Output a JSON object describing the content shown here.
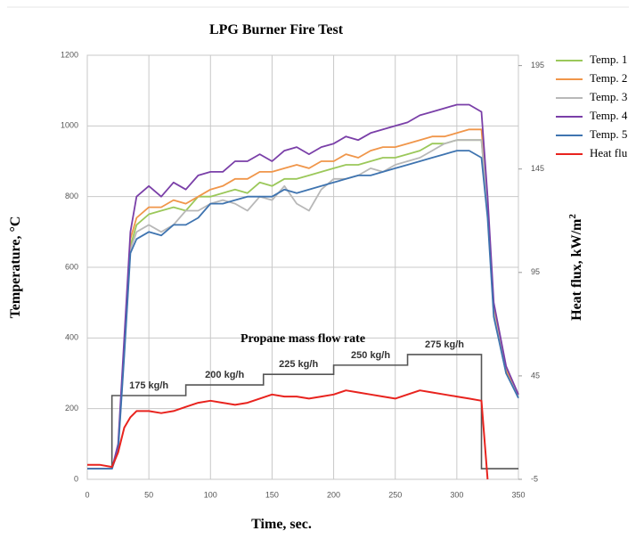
{
  "chart_data": {
    "type": "line",
    "title": "LPG Burner Fire Test",
    "xlabel": "Time, sec.",
    "ylabel": "Temperature, °C",
    "y2label": "Heat flux, kW/m",
    "y2label_sup": "2",
    "xlim": [
      0,
      350
    ],
    "xticks": [
      0,
      50,
      100,
      150,
      200,
      250,
      300,
      350
    ],
    "ylim": [
      0,
      1200
    ],
    "yticks": [
      0,
      200,
      400,
      600,
      800,
      1000,
      1200
    ],
    "y2lim": [
      -5,
      200
    ],
    "y2ticks": [
      -5,
      45,
      95,
      145,
      195
    ],
    "grid": true,
    "legend": "right",
    "x": [
      0,
      10,
      20,
      25,
      30,
      35,
      40,
      50,
      60,
      70,
      80,
      90,
      100,
      110,
      120,
      130,
      140,
      150,
      160,
      170,
      180,
      190,
      200,
      210,
      220,
      230,
      240,
      250,
      260,
      270,
      280,
      290,
      300,
      310,
      320,
      325,
      330,
      340,
      350
    ],
    "series": [
      {
        "name": "Temp. 1",
        "color": "#9bc85a",
        "values": [
          30,
          30,
          30,
          90,
          370,
          660,
          720,
          750,
          760,
          770,
          760,
          800,
          800,
          810,
          820,
          810,
          840,
          830,
          850,
          850,
          860,
          870,
          880,
          890,
          890,
          900,
          910,
          910,
          920,
          930,
          950,
          950,
          960,
          960,
          960,
          760,
          470,
          300,
          235
        ]
      },
      {
        "name": "Temp. 2",
        "color": "#f0964a",
        "values": [
          30,
          30,
          30,
          90,
          380,
          680,
          740,
          770,
          770,
          790,
          780,
          800,
          820,
          830,
          850,
          850,
          870,
          870,
          880,
          890,
          880,
          900,
          900,
          920,
          910,
          930,
          940,
          940,
          950,
          960,
          970,
          970,
          980,
          990,
          990,
          780,
          480,
          310,
          240
        ]
      },
      {
        "name": "Temp. 3",
        "color": "#b8b8b8",
        "values": [
          30,
          30,
          30,
          85,
          360,
          650,
          700,
          720,
          700,
          720,
          760,
          760,
          780,
          790,
          780,
          760,
          800,
          790,
          830,
          780,
          760,
          820,
          850,
          850,
          860,
          880,
          870,
          890,
          900,
          910,
          930,
          950,
          960,
          960,
          960,
          760,
          470,
          300,
          235
        ]
      },
      {
        "name": "Temp. 4",
        "color": "#7a3fa8",
        "values": [
          30,
          30,
          30,
          100,
          400,
          700,
          800,
          830,
          800,
          840,
          820,
          860,
          870,
          870,
          900,
          900,
          920,
          900,
          930,
          940,
          920,
          940,
          950,
          970,
          960,
          980,
          990,
          1000,
          1010,
          1030,
          1040,
          1050,
          1060,
          1060,
          1040,
          800,
          500,
          320,
          240
        ]
      },
      {
        "name": "Temp. 5",
        "color": "#3f74b0",
        "values": [
          30,
          30,
          30,
          80,
          350,
          640,
          680,
          700,
          690,
          720,
          720,
          740,
          780,
          780,
          790,
          800,
          800,
          800,
          820,
          810,
          820,
          830,
          840,
          850,
          860,
          860,
          870,
          880,
          890,
          900,
          910,
          920,
          930,
          930,
          910,
          740,
          460,
          300,
          230
        ]
      },
      {
        "name": "Heat flu",
        "color": "#e8231e",
        "axis": "y2",
        "values": [
          2,
          2,
          1,
          8,
          20,
          25,
          28,
          28,
          27,
          28,
          30,
          32,
          33,
          32,
          31,
          32,
          34,
          36,
          35,
          35,
          34,
          35,
          36,
          38,
          37,
          36,
          35,
          34,
          36,
          38,
          37,
          36,
          35,
          34,
          33,
          -5,
          null,
          null,
          null
        ]
      }
    ],
    "flow_rate": {
      "title": "Propane mass flow rate",
      "color": "#555555",
      "x": [
        0,
        20,
        80,
        143,
        200,
        260,
        320,
        350
      ],
      "values": [
        30,
        237,
        267,
        297,
        323,
        353,
        30,
        30
      ],
      "labels": [
        null,
        "175 kg/h",
        "200 kg/h",
        "225 kg/h",
        "250 kg/h",
        "275 kg/h",
        null,
        null
      ]
    }
  }
}
